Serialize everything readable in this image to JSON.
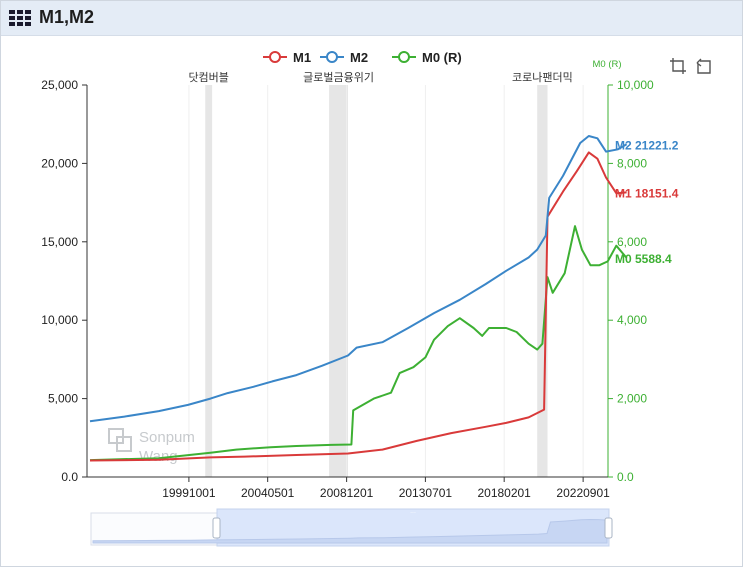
{
  "window": {
    "title": "M1,M2"
  },
  "chart_data": {
    "type": "line",
    "legend": {
      "items": [
        "M1",
        "M2",
        "M0 (R)"
      ],
      "placement": "top-center"
    },
    "x": {
      "ticks": [
        "19991001",
        "20040501",
        "20081201",
        "20130701",
        "20180201",
        "20220901"
      ],
      "range": [
        1994.0,
        2024.0
      ]
    },
    "y_left": {
      "ticks": [
        "25,000",
        "20,000",
        "15,000",
        "10,000",
        "5,000",
        "0.0"
      ],
      "range": [
        0,
        25000
      ]
    },
    "y_right": {
      "label": "M0 (R)",
      "ticks": [
        "10,000",
        "8,000",
        "6,000",
        "4,000",
        "2,000",
        "0.0"
      ],
      "range": [
        0,
        10000
      ]
    },
    "grid": false,
    "shaded_periods": [
      {
        "label": "닷컴버블",
        "start": 2000.7,
        "end": 2001.1
      },
      {
        "label": "글로벌금융위기",
        "start": 2007.9,
        "end": 2009.0
      },
      {
        "label": "코로나팬더믹",
        "start": 2020.0,
        "end": 2020.6
      }
    ],
    "series": [
      {
        "name": "M2",
        "axis": "left",
        "color": "#3a86c8",
        "end_label": "M2 21221.2",
        "points": [
          [
            1994.0,
            3550
          ],
          [
            1996.0,
            3850
          ],
          [
            1998.0,
            4200
          ],
          [
            1999.7,
            4600
          ],
          [
            2001.0,
            5000
          ],
          [
            2002.0,
            5350
          ],
          [
            2003.5,
            5750
          ],
          [
            2004.6,
            6100
          ],
          [
            2006.0,
            6500
          ],
          [
            2007.5,
            7100
          ],
          [
            2009.0,
            7750
          ],
          [
            2009.5,
            8250
          ],
          [
            2011.0,
            8600
          ],
          [
            2012.5,
            9500
          ],
          [
            2014.0,
            10450
          ],
          [
            2015.5,
            11300
          ],
          [
            2017.0,
            12300
          ],
          [
            2018.2,
            13150
          ],
          [
            2019.5,
            14000
          ],
          [
            2020.0,
            14500
          ],
          [
            2020.5,
            15400
          ],
          [
            2020.7,
            17800
          ],
          [
            2021.5,
            19200
          ],
          [
            2022.5,
            21300
          ],
          [
            2023.0,
            21750
          ],
          [
            2023.5,
            21600
          ],
          [
            2024.0,
            20750
          ],
          [
            2024.7,
            20900
          ],
          [
            2025.2,
            21221.2
          ]
        ]
      },
      {
        "name": "M1",
        "axis": "left",
        "color": "#d93a3a",
        "end_label": "M1 18151.4",
        "points": [
          [
            1994.0,
            1050
          ],
          [
            1998.0,
            1100
          ],
          [
            2001.0,
            1250
          ],
          [
            2003.0,
            1300
          ],
          [
            2006.0,
            1400
          ],
          [
            2009.0,
            1500
          ],
          [
            2011.0,
            1750
          ],
          [
            2013.0,
            2300
          ],
          [
            2015.0,
            2800
          ],
          [
            2017.0,
            3200
          ],
          [
            2018.2,
            3450
          ],
          [
            2019.5,
            3800
          ],
          [
            2020.4,
            4300
          ],
          [
            2020.6,
            16600
          ],
          [
            2021.5,
            18200
          ],
          [
            2022.3,
            19500
          ],
          [
            2023.0,
            20700
          ],
          [
            2023.5,
            20300
          ],
          [
            2024.0,
            19100
          ],
          [
            2024.6,
            18100
          ],
          [
            2025.2,
            18151.4
          ]
        ]
      },
      {
        "name": "M0 (R)",
        "axis": "right",
        "color": "#3db033",
        "end_label": "M0  5588.4",
        "points": [
          [
            1994.0,
            430
          ],
          [
            1998.0,
            480
          ],
          [
            2001.0,
            620
          ],
          [
            2002.5,
            700
          ],
          [
            2004.5,
            760
          ],
          [
            2006.0,
            790
          ],
          [
            2008.0,
            820
          ],
          [
            2009.2,
            830
          ],
          [
            2009.3,
            1700
          ],
          [
            2010.5,
            2000
          ],
          [
            2011.5,
            2150
          ],
          [
            2012.0,
            2650
          ],
          [
            2012.8,
            2800
          ],
          [
            2013.5,
            3050
          ],
          [
            2014.0,
            3500
          ],
          [
            2014.8,
            3850
          ],
          [
            2015.5,
            4050
          ],
          [
            2016.3,
            3800
          ],
          [
            2016.8,
            3600
          ],
          [
            2017.2,
            3800
          ],
          [
            2018.2,
            3800
          ],
          [
            2018.8,
            3700
          ],
          [
            2019.5,
            3400
          ],
          [
            2020.0,
            3250
          ],
          [
            2020.3,
            3400
          ],
          [
            2020.6,
            5100
          ],
          [
            2020.9,
            4700
          ],
          [
            2021.6,
            5200
          ],
          [
            2022.2,
            6400
          ],
          [
            2022.6,
            5800
          ],
          [
            2023.1,
            5400
          ],
          [
            2023.6,
            5400
          ],
          [
            2024.1,
            5500
          ],
          [
            2024.6,
            5900
          ],
          [
            2025.2,
            5588.4
          ]
        ]
      }
    ]
  },
  "navigator": {
    "handle_grip": "..."
  }
}
